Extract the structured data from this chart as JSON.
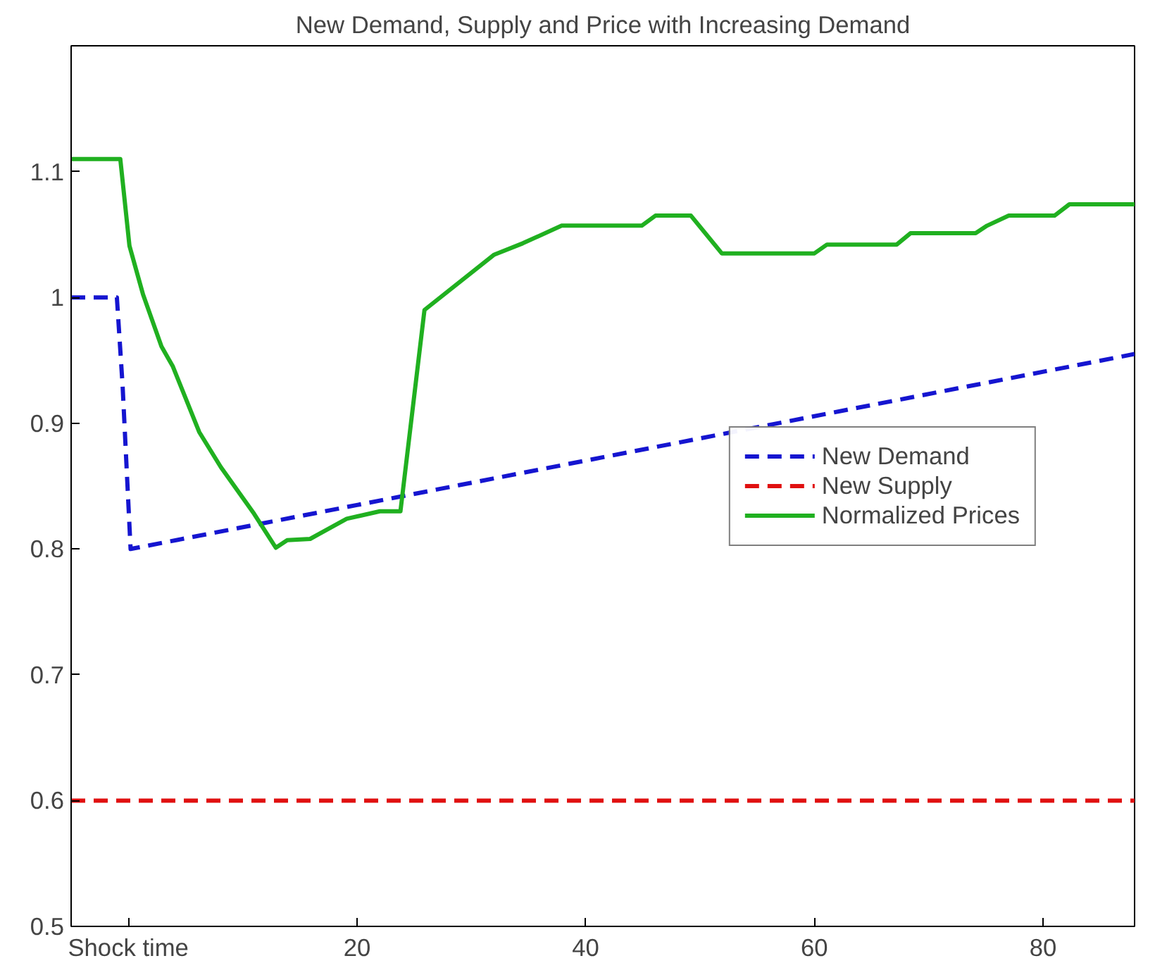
{
  "chart_data": {
    "type": "line",
    "title": "New Demand, Supply and Price with Increasing Demand",
    "xlim": [
      -5,
      88
    ],
    "xticks": [
      {
        "value": 0,
        "label": "Shock time"
      },
      20,
      40,
      60,
      80
    ],
    "ylim": [
      0.5,
      1.2
    ],
    "yticks": [
      0.5,
      0.6,
      0.7,
      0.8,
      0.9,
      1,
      1.1
    ],
    "grid": false,
    "legend": "right",
    "marker": "none",
    "series": [
      {
        "name": "New Demand",
        "color": "#1515d0",
        "line_style": "dashed",
        "x": [
          -5,
          -1,
          -0.5,
          0.2,
          88
        ],
        "values": [
          1.0,
          1.0,
          0.93,
          0.8,
          0.955
        ]
      },
      {
        "name": "New Supply",
        "color": "#e01010",
        "line_style": "dashed",
        "x": [
          -5,
          88
        ],
        "values": [
          0.6,
          0.6
        ]
      },
      {
        "name": "Normalized Prices",
        "color": "#20b020",
        "line_style": "solid",
        "x": [
          -5,
          -0.7,
          0.1,
          1.3,
          2.9,
          3.9,
          6.2,
          8.1,
          11.0,
          12.9,
          13.9,
          15.9,
          19.1,
          22.0,
          23.8,
          25.9,
          32.0,
          34.5,
          37.9,
          44.9,
          46.1,
          49.2,
          51.9,
          60.0,
          61.1,
          67.2,
          68.4,
          74.1,
          75.1,
          77.0,
          81.0,
          82.3,
          88
        ],
        "values": [
          1.11,
          1.11,
          1.041,
          1.002,
          0.961,
          0.945,
          0.893,
          0.865,
          0.828,
          0.801,
          0.807,
          0.808,
          0.824,
          0.83,
          0.83,
          0.99,
          1.034,
          1.043,
          1.057,
          1.057,
          1.065,
          1.065,
          1.035,
          1.035,
          1.042,
          1.042,
          1.051,
          1.051,
          1.057,
          1.065,
          1.065,
          1.074,
          1.074
        ]
      }
    ]
  }
}
